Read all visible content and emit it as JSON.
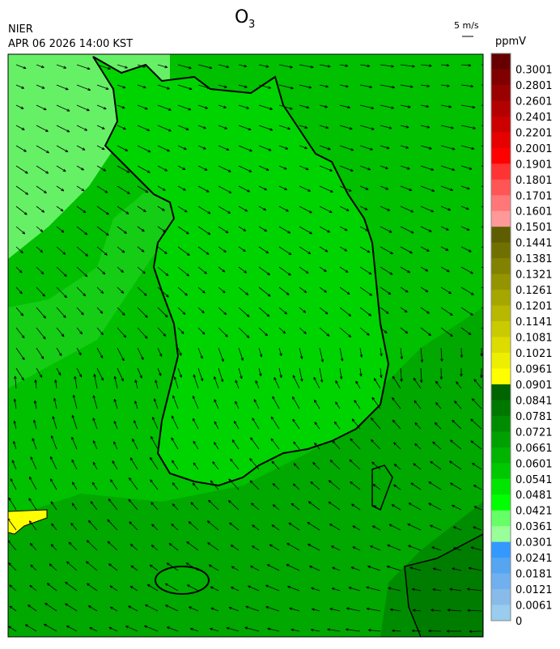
{
  "header": {
    "title": {
      "text": "O",
      "subscript": "3"
    },
    "agency": "NIER",
    "datetime": "APR 06 2026 14:00 KST"
  },
  "wind_scale": {
    "label": "5 m/s"
  },
  "legend": {
    "unit": "ppmV",
    "levels": [
      {
        "label": "0.3001",
        "color": "#660000"
      },
      {
        "label": "0.2801",
        "color": "#800000"
      },
      {
        "label": "0.2601",
        "color": "#990000"
      },
      {
        "label": "0.2401",
        "color": "#b30000"
      },
      {
        "label": "0.2201",
        "color": "#cc0000"
      },
      {
        "label": "0.2001",
        "color": "#e60000"
      },
      {
        "label": "0.1901",
        "color": "#ff0000"
      },
      {
        "label": "0.1801",
        "color": "#ff3333"
      },
      {
        "label": "0.1701",
        "color": "#ff5555"
      },
      {
        "label": "0.1601",
        "color": "#ff7777"
      },
      {
        "label": "0.1501",
        "color": "#ff9999"
      },
      {
        "label": "0.1441",
        "color": "#5e5e00"
      },
      {
        "label": "0.1381",
        "color": "#707000"
      },
      {
        "label": "0.1321",
        "color": "#828200"
      },
      {
        "label": "0.1261",
        "color": "#949400"
      },
      {
        "label": "0.1201",
        "color": "#a6a600"
      },
      {
        "label": "0.1141",
        "color": "#b8b800"
      },
      {
        "label": "0.1081",
        "color": "#caca00"
      },
      {
        "label": "0.1021",
        "color": "#dcdc00"
      },
      {
        "label": "0.0961",
        "color": "#eeee00"
      },
      {
        "label": "0.0901",
        "color": "#ffff00"
      },
      {
        "label": "0.0841",
        "color": "#006400"
      },
      {
        "label": "0.0781",
        "color": "#007800"
      },
      {
        "label": "0.0721",
        "color": "#008c00"
      },
      {
        "label": "0.0661",
        "color": "#00a000"
      },
      {
        "label": "0.0601",
        "color": "#00b400"
      },
      {
        "label": "0.0541",
        "color": "#00c800"
      },
      {
        "label": "0.0481",
        "color": "#00e600"
      },
      {
        "label": "0.0421",
        "color": "#00ff00"
      },
      {
        "label": "0.0361",
        "color": "#66ff66"
      },
      {
        "label": "0.0301",
        "color": "#99ff99"
      },
      {
        "label": "0.0241",
        "color": "#3399ff"
      },
      {
        "label": "0.0181",
        "color": "#55a5f0"
      },
      {
        "label": "0.0121",
        "color": "#70b0ee"
      },
      {
        "label": "0.0061",
        "color": "#88bbea"
      },
      {
        "label": "0",
        "color": "#99ccee"
      }
    ]
  }
}
